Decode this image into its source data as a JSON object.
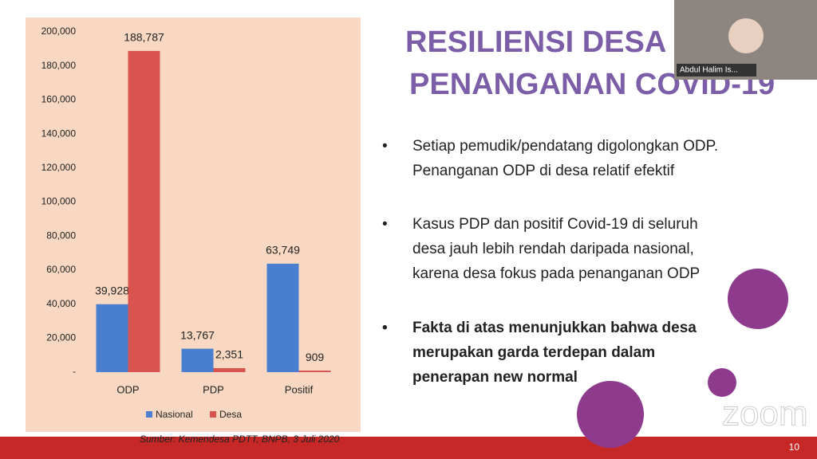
{
  "chart_data": {
    "type": "bar",
    "categories": [
      "ODP",
      "PDP",
      "Positif"
    ],
    "series": [
      {
        "name": "Nasional",
        "color": "#4a7fd0",
        "values": [
          39928,
          13767,
          63749
        ],
        "value_labels": [
          "39,928",
          "13,767",
          "63,749"
        ]
      },
      {
        "name": "Desa",
        "color": "#d9534f",
        "values": [
          188787,
          2351,
          909
        ],
        "value_labels": [
          "188,787",
          "2,351",
          "909"
        ]
      }
    ],
    "ylim": [
      0,
      200000
    ],
    "yticks": [
      {
        "value": 0,
        "label": "-"
      },
      {
        "value": 20000,
        "label": "20,000"
      },
      {
        "value": 40000,
        "label": "40,000"
      },
      {
        "value": 60000,
        "label": "60,000"
      },
      {
        "value": 80000,
        "label": "80,000"
      },
      {
        "value": 100000,
        "label": "100,000"
      },
      {
        "value": 120000,
        "label": "120,000"
      },
      {
        "value": 140000,
        "label": "140,000"
      },
      {
        "value": 160000,
        "label": "160,000"
      },
      {
        "value": 180000,
        "label": "180,000"
      },
      {
        "value": 200000,
        "label": "200,000"
      }
    ],
    "legend": "bottom",
    "source": "Sumber: Kemendesa PDTT, BNPB, 3 Juli 2020"
  },
  "slide": {
    "title": [
      "RESILIENSI DESA I",
      "PENANGANAN COVID-19"
    ],
    "bullets": [
      "Setiap pemudik/pendatang digolongkan ODP. Penanganan ODP di desa relatif efektif",
      "Kasus PDP dan positif Covid-19 di seluruh desa jauh lebih rendah daripada nasional, karena desa fokus pada penanganan ODP",
      "Fakta di atas menunjukkan bahwa desa merupakan garda terdepan dalam penerapan new normal"
    ],
    "page_number": "10"
  },
  "video": {
    "participant": "Abdul Halim Is...",
    "watermark": "zoom"
  }
}
